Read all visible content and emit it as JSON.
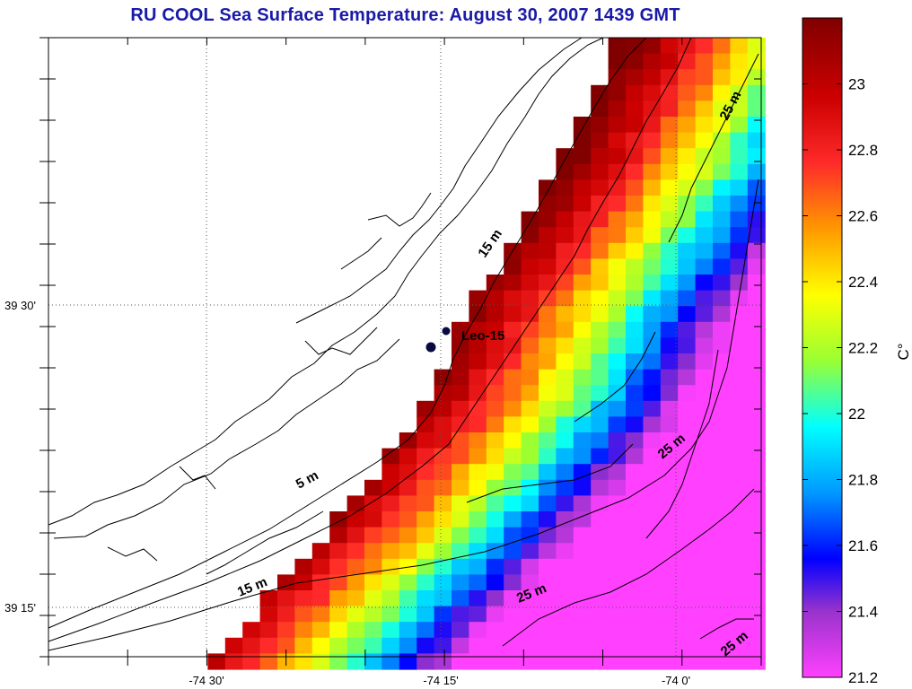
{
  "title": "RU COOL  Sea Surface Temperature:  August 30, 2007 1439 GMT",
  "x_ticks": [
    "-74 30'",
    "-74 15'",
    "-74 0'"
  ],
  "y_ticks": [
    "39 30'",
    "39 15'"
  ],
  "contours": [
    "5 m",
    "15 m",
    "15 m",
    "25 m",
    "25 m",
    "25 m",
    "25 m"
  ],
  "station": "Leo-15",
  "colorbar": {
    "unit": "C°",
    "ticks": [
      "23",
      "22.8",
      "22.6",
      "22.4",
      "22.2",
      "22",
      "21.8",
      "21.6",
      "21.4",
      "21.2"
    ],
    "min": 21.2,
    "max": 23.2
  },
  "colors": {
    "title": "#1a1aa8",
    "scale_hot": "#800000",
    "scale_cold": "#ff40ff"
  }
}
